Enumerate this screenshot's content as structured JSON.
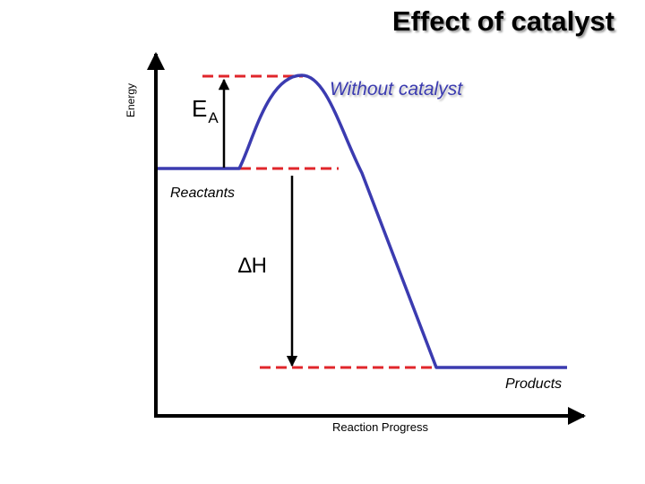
{
  "title": "Effect of catalyst",
  "axes": {
    "y_label": "Energy",
    "x_label": "Reaction Progress"
  },
  "labels": {
    "without_catalyst": "Without catalyst",
    "reactants": "Reactants",
    "products": "Products",
    "activation_energy_main": "E",
    "activation_energy_sub": "A",
    "enthalpy_change": "∆H"
  },
  "colors": {
    "curve": "#3b3bb0",
    "reference_line": "#e0262b",
    "axis": "#000000"
  }
}
